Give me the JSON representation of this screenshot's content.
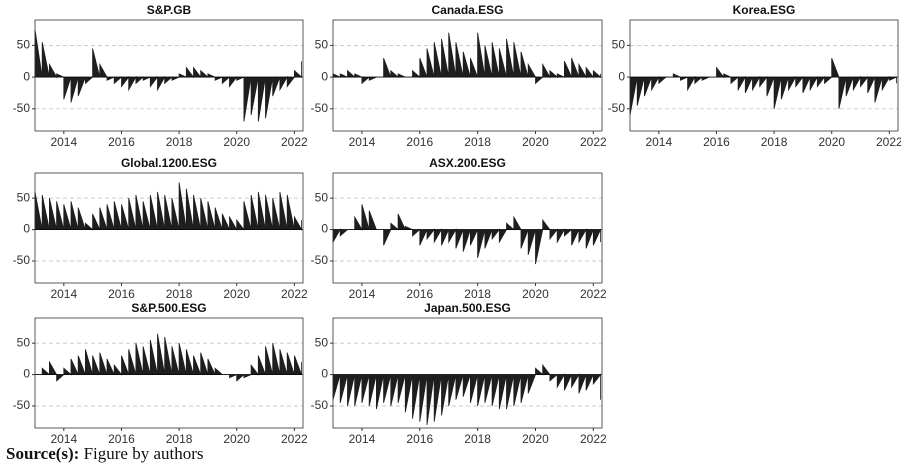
{
  "chart_data": [
    {
      "type": "area",
      "title": "S&P.GB",
      "color": "#1e1e1e",
      "grid": true,
      "xlim": [
        2013,
        2022.3
      ],
      "xticks": [
        2014,
        2016,
        2018,
        2020,
        2022
      ],
      "ylim": [
        -85,
        90
      ],
      "yticks": [
        -50,
        0,
        50
      ],
      "x": [
        2013,
        2013.25,
        2013.5,
        2013.75,
        2014,
        2014.25,
        2014.5,
        2014.75,
        2015,
        2015.25,
        2015.5,
        2015.75,
        2016,
        2016.25,
        2016.5,
        2016.75,
        2017,
        2017.25,
        2017.5,
        2017.75,
        2018,
        2018.25,
        2018.5,
        2018.75,
        2019,
        2019.25,
        2019.5,
        2019.75,
        2020,
        2020.25,
        2020.5,
        2020.75,
        2021,
        2021.25,
        2021.5,
        2021.75,
        2022,
        2022.25
      ],
      "values": [
        75,
        55,
        20,
        5,
        -35,
        -40,
        -30,
        -10,
        45,
        20,
        -5,
        -10,
        -15,
        -20,
        -10,
        -5,
        -15,
        -20,
        -10,
        -5,
        5,
        15,
        15,
        10,
        5,
        -5,
        -10,
        -15,
        -5,
        -70,
        -60,
        -70,
        -65,
        -30,
        -20,
        -15,
        10,
        25
      ]
    },
    {
      "type": "area",
      "title": "Canada.ESG",
      "color": "#1e1e1e",
      "grid": true,
      "xlim": [
        2013,
        2022.3
      ],
      "xticks": [
        2014,
        2016,
        2018,
        2020,
        2022
      ],
      "ylim": [
        -85,
        90
      ],
      "yticks": [
        -50,
        0,
        50
      ],
      "x": [
        2013,
        2013.25,
        2013.5,
        2013.75,
        2014,
        2014.25,
        2014.5,
        2014.75,
        2015,
        2015.25,
        2015.5,
        2015.75,
        2016,
        2016.25,
        2016.5,
        2016.75,
        2017,
        2017.25,
        2017.5,
        2017.75,
        2018,
        2018.25,
        2018.5,
        2018.75,
        2019,
        2019.25,
        2019.5,
        2019.75,
        2020,
        2020.25,
        2020.5,
        2020.75,
        2021,
        2021.25,
        2021.5,
        2021.75,
        2022,
        2022.25
      ],
      "values": [
        5,
        5,
        10,
        5,
        -10,
        -5,
        0,
        30,
        10,
        5,
        0,
        10,
        30,
        45,
        55,
        60,
        70,
        55,
        40,
        30,
        70,
        50,
        55,
        45,
        60,
        55,
        40,
        20,
        -10,
        20,
        10,
        5,
        25,
        30,
        20,
        15,
        10,
        5
      ]
    },
    {
      "type": "area",
      "title": "Korea.ESG",
      "color": "#1e1e1e",
      "grid": true,
      "xlim": [
        2013,
        2022.3
      ],
      "xticks": [
        2014,
        2016,
        2018,
        2020,
        2022
      ],
      "ylim": [
        -85,
        90
      ],
      "yticks": [
        -50,
        0,
        50
      ],
      "x": [
        2013,
        2013.25,
        2013.5,
        2013.75,
        2014,
        2014.25,
        2014.5,
        2014.75,
        2015,
        2015.25,
        2015.5,
        2015.75,
        2016,
        2016.25,
        2016.5,
        2016.75,
        2017,
        2017.25,
        2017.5,
        2017.75,
        2018,
        2018.25,
        2018.5,
        2018.75,
        2019,
        2019.25,
        2019.5,
        2019.75,
        2020,
        2020.25,
        2020.5,
        2020.75,
        2021,
        2021.25,
        2021.5,
        2021.75,
        2022,
        2022.25
      ],
      "values": [
        -60,
        -45,
        -30,
        -20,
        -10,
        0,
        5,
        -5,
        -20,
        -10,
        -5,
        0,
        15,
        5,
        -10,
        -20,
        -25,
        -20,
        -15,
        -30,
        -50,
        -35,
        -20,
        -15,
        -25,
        -20,
        -15,
        -10,
        30,
        -50,
        -30,
        -20,
        -15,
        -25,
        -40,
        -20,
        -5,
        -10
      ]
    },
    {
      "type": "area",
      "title": "Global.1200.ESG",
      "color": "#1e1e1e",
      "grid": true,
      "xlim": [
        2013,
        2022.3
      ],
      "xticks": [
        2014,
        2016,
        2018,
        2020,
        2022
      ],
      "ylim": [
        -85,
        90
      ],
      "yticks": [
        -50,
        0,
        50
      ],
      "x": [
        2013,
        2013.25,
        2013.5,
        2013.75,
        2014,
        2014.25,
        2014.5,
        2014.75,
        2015,
        2015.25,
        2015.5,
        2015.75,
        2016,
        2016.25,
        2016.5,
        2016.75,
        2017,
        2017.25,
        2017.5,
        2017.75,
        2018,
        2018.25,
        2018.5,
        2018.75,
        2019,
        2019.25,
        2019.5,
        2019.75,
        2020,
        2020.25,
        2020.5,
        2020.75,
        2021,
        2021.25,
        2021.5,
        2021.75,
        2022,
        2022.25
      ],
      "values": [
        60,
        55,
        50,
        45,
        40,
        45,
        35,
        10,
        25,
        35,
        40,
        45,
        40,
        50,
        55,
        45,
        55,
        60,
        55,
        50,
        75,
        65,
        55,
        50,
        45,
        35,
        25,
        20,
        15,
        45,
        55,
        60,
        55,
        50,
        60,
        55,
        20,
        15
      ]
    },
    {
      "type": "area",
      "title": "ASX.200.ESG",
      "color": "#1e1e1e",
      "grid": true,
      "xlim": [
        2013,
        2022.3
      ],
      "xticks": [
        2014,
        2016,
        2018,
        2020,
        2022
      ],
      "ylim": [
        -85,
        90
      ],
      "yticks": [
        -50,
        0,
        50
      ],
      "x": [
        2013,
        2013.25,
        2013.5,
        2013.75,
        2014,
        2014.25,
        2014.5,
        2014.75,
        2015,
        2015.25,
        2015.5,
        2015.75,
        2016,
        2016.25,
        2016.5,
        2016.75,
        2017,
        2017.25,
        2017.5,
        2017.75,
        2018,
        2018.25,
        2018.5,
        2018.75,
        2019,
        2019.25,
        2019.5,
        2019.75,
        2020,
        2020.25,
        2020.5,
        2020.75,
        2021,
        2021.25,
        2021.5,
        2021.75,
        2022,
        2022.25
      ],
      "values": [
        -20,
        -10,
        0,
        20,
        40,
        30,
        0,
        -25,
        10,
        25,
        5,
        -10,
        -25,
        -15,
        -20,
        -25,
        -20,
        -30,
        -35,
        -25,
        -45,
        -30,
        -15,
        -20,
        10,
        20,
        -30,
        -40,
        -55,
        15,
        -15,
        -20,
        -10,
        -25,
        -20,
        -30,
        -25,
        -20
      ]
    },
    {
      "type": "area",
      "title": "S&P.500.ESG",
      "color": "#1e1e1e",
      "grid": true,
      "xlim": [
        2013,
        2022.3
      ],
      "xticks": [
        2014,
        2016,
        2018,
        2020,
        2022
      ],
      "ylim": [
        -85,
        90
      ],
      "yticks": [
        -50,
        0,
        50
      ],
      "x": [
        2013,
        2013.25,
        2013.5,
        2013.75,
        2014,
        2014.25,
        2014.5,
        2014.75,
        2015,
        2015.25,
        2015.5,
        2015.75,
        2016,
        2016.25,
        2016.5,
        2016.75,
        2017,
        2017.25,
        2017.5,
        2017.75,
        2018,
        2018.25,
        2018.5,
        2018.75,
        2019,
        2019.25,
        2019.5,
        2019.75,
        2020,
        2020.25,
        2020.5,
        2020.75,
        2021,
        2021.25,
        2021.5,
        2021.75,
        2022,
        2022.25
      ],
      "values": [
        0,
        10,
        20,
        -10,
        10,
        25,
        30,
        40,
        30,
        35,
        25,
        15,
        30,
        40,
        50,
        45,
        55,
        65,
        60,
        45,
        50,
        40,
        30,
        35,
        25,
        10,
        0,
        -5,
        -10,
        -5,
        15,
        30,
        45,
        50,
        40,
        35,
        30,
        20
      ]
    },
    {
      "type": "area",
      "title": "Japan.500.ESG",
      "color": "#1e1e1e",
      "grid": true,
      "xlim": [
        2013,
        2022.3
      ],
      "xticks": [
        2014,
        2016,
        2018,
        2020,
        2022
      ],
      "ylim": [
        -85,
        90
      ],
      "yticks": [
        -50,
        0,
        50
      ],
      "x": [
        2013,
        2013.25,
        2013.5,
        2013.75,
        2014,
        2014.25,
        2014.5,
        2014.75,
        2015,
        2015.25,
        2015.5,
        2015.75,
        2016,
        2016.25,
        2016.5,
        2016.75,
        2017,
        2017.25,
        2017.5,
        2017.75,
        2018,
        2018.25,
        2018.5,
        2018.75,
        2019,
        2019.25,
        2019.5,
        2019.75,
        2020,
        2020.25,
        2020.5,
        2020.75,
        2021,
        2021.25,
        2021.5,
        2021.75,
        2022,
        2022.25
      ],
      "values": [
        -40,
        -45,
        -50,
        -50,
        -45,
        -50,
        -55,
        -45,
        -50,
        -45,
        -60,
        -70,
        -75,
        -80,
        -75,
        -65,
        -50,
        -40,
        -35,
        -45,
        -50,
        -45,
        -50,
        -55,
        -55,
        -50,
        -45,
        -30,
        10,
        15,
        -10,
        -20,
        -25,
        -20,
        -30,
        -25,
        -15,
        -40
      ]
    }
  ],
  "source": {
    "label": "Source(s):",
    "text": "Figure by authors"
  }
}
